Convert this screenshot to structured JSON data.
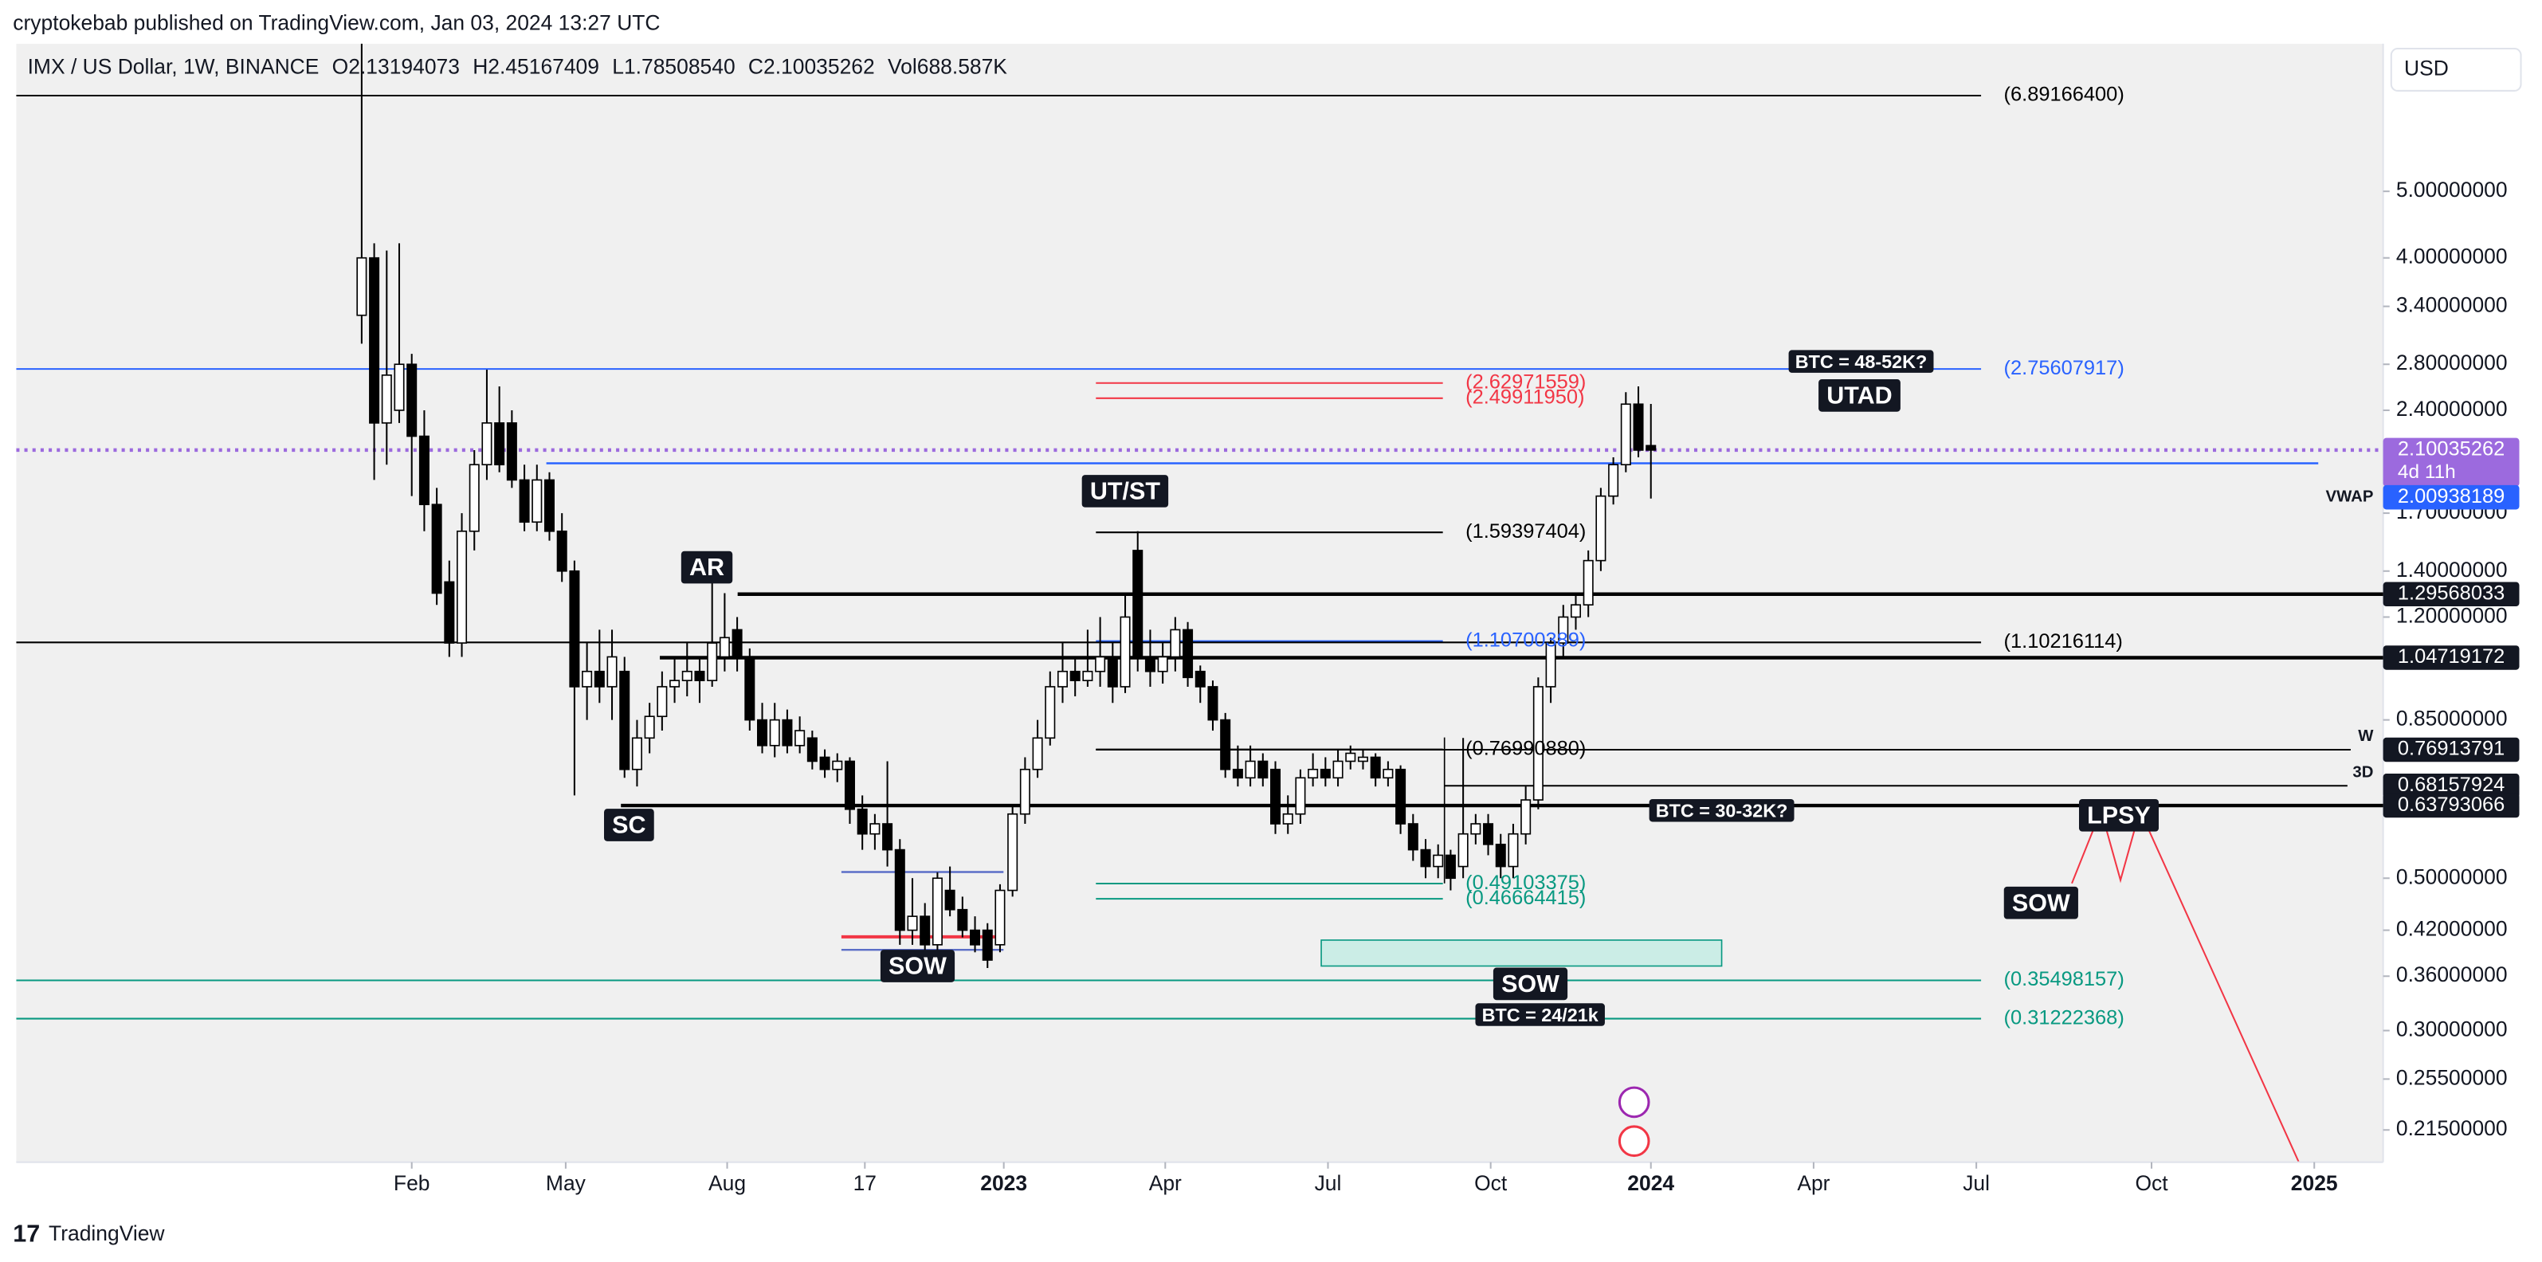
{
  "chart_data": {
    "type": "candlestick",
    "title": "cryptokebab published on TradingView.com, Jan 03, 2024 13:27 UTC",
    "subtitle": "IMX / US Dollar, 1W, BINANCE",
    "ohlc": [
      "O2.13194073",
      "H2.45167409",
      "L1.78508540",
      "C2.10035262",
      "Vol688.587K"
    ],
    "currency": "USD",
    "brand": "TradingView",
    "log_scale": true,
    "up_color": "#ffffff",
    "down_color": "#000000",
    "ylim": [
      0.193,
      8.2
    ],
    "yticks": [
      {
        "value": 5,
        "label": "5.00000000"
      },
      {
        "value": 4,
        "label": "4.00000000"
      },
      {
        "value": 3.4,
        "label": "3.40000000"
      },
      {
        "value": 2.8,
        "label": "2.80000000"
      },
      {
        "value": 2.4,
        "label": "2.40000000"
      },
      {
        "value": 1.7,
        "label": "1.70000000"
      },
      {
        "value": 1.4,
        "label": "1.40000000"
      },
      {
        "value": 1.2,
        "label": "1.20000000"
      },
      {
        "value": 0.85,
        "label": "0.85000000"
      },
      {
        "value": 0.5,
        "label": "0.50000000"
      },
      {
        "value": 0.42,
        "label": "0.42000000"
      },
      {
        "value": 0.36,
        "label": "0.36000000"
      },
      {
        "value": 0.3,
        "label": "0.30000000"
      },
      {
        "value": 0.255,
        "label": "0.25500000"
      },
      {
        "value": 0.215,
        "label": "0.21500000"
      }
    ],
    "xlim": [
      -27.6,
      161.5
    ],
    "xticks": [
      {
        "value": 4,
        "label": "Feb"
      },
      {
        "value": 16.3,
        "label": "May"
      },
      {
        "value": 29.2,
        "label": "Aug"
      },
      {
        "value": 40.2,
        "label": "17"
      },
      {
        "value": 51.3,
        "label": "2023"
      },
      {
        "value": 64.2,
        "label": "Apr"
      },
      {
        "value": 77.2,
        "label": "Jul"
      },
      {
        "value": 90.2,
        "label": "Oct"
      },
      {
        "value": 103,
        "label": "2024"
      },
      {
        "value": 116,
        "label": "Apr"
      },
      {
        "value": 129,
        "label": "Jul"
      },
      {
        "value": 143,
        "label": "Oct"
      },
      {
        "value": 156,
        "label": "2025"
      }
    ],
    "candles": [
      [
        3.3,
        32,
        3.0,
        4.0
      ],
      [
        4.0,
        4.2,
        1.9,
        2.3
      ],
      [
        2.3,
        4.1,
        2.0,
        2.7
      ],
      [
        2.4,
        4.2,
        2.3,
        2.8
      ],
      [
        2.8,
        2.9,
        1.8,
        2.2
      ],
      [
        2.2,
        2.4,
        1.6,
        1.75
      ],
      [
        1.75,
        1.85,
        1.25,
        1.3
      ],
      [
        1.35,
        1.45,
        1.05,
        1.1
      ],
      [
        1.1,
        1.7,
        1.05,
        1.6
      ],
      [
        1.6,
        2.1,
        1.5,
        2.0
      ],
      [
        2.0,
        2.75,
        1.9,
        2.3
      ],
      [
        2.3,
        2.6,
        1.95,
        2.0
      ],
      [
        2.3,
        2.4,
        1.85,
        1.9
      ],
      [
        1.9,
        2.0,
        1.6,
        1.65
      ],
      [
        1.65,
        2.0,
        1.6,
        1.9
      ],
      [
        1.9,
        1.95,
        1.55,
        1.6
      ],
      [
        1.6,
        1.7,
        1.35,
        1.4
      ],
      [
        1.4,
        1.45,
        0.66,
        0.95
      ],
      [
        0.95,
        1.1,
        0.85,
        1.0
      ],
      [
        1.0,
        1.15,
        0.9,
        0.95
      ],
      [
        0.95,
        1.15,
        0.85,
        1.05
      ],
      [
        1.0,
        1.05,
        0.7,
        0.72
      ],
      [
        0.72,
        0.85,
        0.68,
        0.8
      ],
      [
        0.8,
        0.9,
        0.76,
        0.86
      ],
      [
        0.86,
        1.0,
        0.82,
        0.95
      ],
      [
        0.95,
        1.05,
        0.9,
        0.97
      ],
      [
        0.97,
        1.1,
        0.92,
        1.0
      ],
      [
        1.0,
        1.05,
        0.9,
        0.97
      ],
      [
        0.97,
        1.35,
        0.95,
        1.1
      ],
      [
        1.05,
        1.3,
        1.0,
        1.12
      ],
      [
        1.15,
        1.2,
        1.0,
        1.05
      ],
      [
        1.05,
        1.08,
        0.82,
        0.85
      ],
      [
        0.85,
        0.9,
        0.76,
        0.78
      ],
      [
        0.78,
        0.9,
        0.75,
        0.85
      ],
      [
        0.85,
        0.88,
        0.76,
        0.78
      ],
      [
        0.78,
        0.86,
        0.76,
        0.82
      ],
      [
        0.8,
        0.82,
        0.72,
        0.74
      ],
      [
        0.75,
        0.77,
        0.7,
        0.72
      ],
      [
        0.72,
        0.76,
        0.69,
        0.74
      ],
      [
        0.74,
        0.75,
        0.6,
        0.63
      ],
      [
        0.63,
        0.66,
        0.55,
        0.58
      ],
      [
        0.58,
        0.62,
        0.55,
        0.6
      ],
      [
        0.6,
        0.74,
        0.52,
        0.55
      ],
      [
        0.55,
        0.57,
        0.4,
        0.42
      ],
      [
        0.42,
        0.5,
        0.4,
        0.44
      ],
      [
        0.44,
        0.46,
        0.39,
        0.4
      ],
      [
        0.4,
        0.51,
        0.39,
        0.5
      ],
      [
        0.48,
        0.52,
        0.44,
        0.45
      ],
      [
        0.45,
        0.47,
        0.41,
        0.42
      ],
      [
        0.42,
        0.44,
        0.39,
        0.4
      ],
      [
        0.42,
        0.43,
        0.37,
        0.38
      ],
      [
        0.4,
        0.49,
        0.39,
        0.48
      ],
      [
        0.48,
        0.64,
        0.47,
        0.62
      ],
      [
        0.62,
        0.75,
        0.6,
        0.72
      ],
      [
        0.72,
        0.85,
        0.7,
        0.8
      ],
      [
        0.8,
        1.0,
        0.78,
        0.95
      ],
      [
        0.95,
        1.1,
        0.9,
        1.0
      ],
      [
        1.0,
        1.05,
        0.92,
        0.97
      ],
      [
        0.97,
        1.15,
        0.95,
        1.0
      ],
      [
        1.0,
        1.2,
        0.95,
        1.05
      ],
      [
        1.05,
        1.1,
        0.9,
        0.95
      ],
      [
        0.95,
        1.3,
        0.93,
        1.2
      ],
      [
        1.5,
        1.6,
        1.0,
        1.05
      ],
      [
        1.05,
        1.15,
        0.95,
        1.0
      ],
      [
        1.0,
        1.1,
        0.96,
        1.05
      ],
      [
        1.05,
        1.2,
        1.0,
        1.15
      ],
      [
        1.15,
        1.18,
        0.95,
        0.98
      ],
      [
        1.0,
        1.02,
        0.9,
        0.95
      ],
      [
        0.95,
        0.97,
        0.82,
        0.85
      ],
      [
        0.85,
        0.87,
        0.7,
        0.72
      ],
      [
        0.72,
        0.78,
        0.68,
        0.7
      ],
      [
        0.7,
        0.78,
        0.68,
        0.74
      ],
      [
        0.74,
        0.76,
        0.68,
        0.7
      ],
      [
        0.72,
        0.74,
        0.58,
        0.6
      ],
      [
        0.6,
        0.66,
        0.58,
        0.62
      ],
      [
        0.62,
        0.72,
        0.6,
        0.7
      ],
      [
        0.7,
        0.76,
        0.68,
        0.72
      ],
      [
        0.72,
        0.75,
        0.68,
        0.7
      ],
      [
        0.7,
        0.77,
        0.68,
        0.74
      ],
      [
        0.74,
        0.78,
        0.72,
        0.76
      ],
      [
        0.74,
        0.77,
        0.72,
        0.75
      ],
      [
        0.75,
        0.76,
        0.68,
        0.7
      ],
      [
        0.7,
        0.74,
        0.68,
        0.72
      ],
      [
        0.72,
        0.73,
        0.58,
        0.6
      ],
      [
        0.6,
        0.62,
        0.53,
        0.55
      ],
      [
        0.55,
        0.57,
        0.5,
        0.52
      ],
      [
        0.52,
        0.56,
        0.5,
        0.54
      ],
      [
        0.54,
        0.55,
        0.48,
        0.5
      ],
      [
        0.52,
        0.8,
        0.5,
        0.58
      ],
      [
        0.58,
        0.62,
        0.56,
        0.6
      ],
      [
        0.6,
        0.62,
        0.54,
        0.56
      ],
      [
        0.56,
        0.58,
        0.5,
        0.52
      ],
      [
        0.52,
        0.6,
        0.5,
        0.58
      ],
      [
        0.58,
        0.68,
        0.56,
        0.65
      ],
      [
        0.65,
        0.98,
        0.63,
        0.95
      ],
      [
        0.95,
        1.12,
        0.9,
        1.1
      ],
      [
        1.1,
        1.25,
        1.05,
        1.2
      ],
      [
        1.2,
        1.3,
        1.15,
        1.25
      ],
      [
        1.25,
        1.5,
        1.2,
        1.45
      ],
      [
        1.45,
        1.85,
        1.4,
        1.8
      ],
      [
        1.8,
        2.05,
        1.75,
        2.0
      ],
      [
        2.0,
        2.55,
        1.95,
        2.45
      ],
      [
        2.45,
        2.6,
        2.05,
        2.1
      ],
      [
        2.13194073,
        2.45167409,
        1.7850854,
        2.10035262
      ]
    ],
    "levels": [
      {
        "value": 6.891664,
        "label": "(6.89166400)",
        "color": "#000000"
      },
      {
        "value": 2.75607917,
        "label": "(2.75607917)",
        "color": "#2962ff"
      },
      {
        "value": 2.62971559,
        "label": "(2.62971559)",
        "color": "#f23645"
      },
      {
        "value": 2.4991195,
        "label": "(2.49911950)",
        "color": "#f23645"
      },
      {
        "value": 1.59397404,
        "label": "(1.59397404)",
        "color": "#000000"
      },
      {
        "value": 1.10700389,
        "label": "(1.10700389)",
        "color": "#2962ff"
      },
      {
        "value": 1.10216114,
        "label": "(1.10216114)",
        "color": "#000000"
      },
      {
        "value": 0.7699088,
        "label": "(0.76990880)",
        "color": "#000000"
      },
      {
        "value": 0.49103375,
        "label": "(0.49103375)",
        "color": "#089981"
      },
      {
        "value": 0.46664415,
        "label": "(0.46664415)",
        "color": "#089981"
      },
      {
        "value": 0.35498157,
        "label": "(0.35498157)",
        "color": "#089981"
      },
      {
        "value": 0.31222368,
        "label": "(0.31222368)",
        "color": "#089981"
      }
    ],
    "badges": [
      {
        "value": 2.10035262,
        "color": "#9c6ade",
        "note": "4d 11h"
      },
      {
        "value": 2.00938189,
        "color": "#2962ff",
        "name": "VWAP"
      },
      {
        "value": 1.29568033,
        "color": "#131722"
      },
      {
        "value": 1.04719172,
        "color": "#131722"
      },
      {
        "value": 0.76913791,
        "color": "#131722",
        "name": "W"
      },
      {
        "value": 0.68157924,
        "color": "#131722",
        "name": "3D"
      },
      {
        "value": 0.63793066,
        "color": "#131722"
      }
    ],
    "annotations": [
      "AR",
      "SC",
      "UT/ST",
      "SOW",
      "SOW",
      "SOW",
      "UTAD",
      "LPSY",
      "BTC = 48-52K?",
      "BTC = 30-32K?",
      "BTC = 24/21k"
    ]
  }
}
